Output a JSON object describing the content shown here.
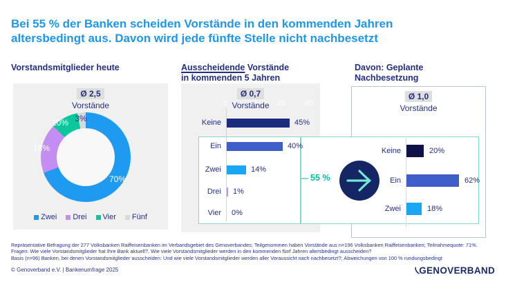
{
  "title": {
    "line1": "Bei 55 % der Banken scheiden Vorstände in den kommenden Jahren",
    "line2": "altersbedingt aus. Davon wird jede fünfte Stelle nicht nachbesetzt"
  },
  "sections": {
    "left": {
      "heading": "Vorstandsmitglieder heute",
      "avg_label": "Ø 2,5",
      "avg_sub": "Vorstände"
    },
    "middle": {
      "heading_underlined": "Ausscheidende",
      "heading_rest": " Vorstände",
      "heading_line2": "in kommenden 5 Jahren",
      "avg_label": "Ø 0,7",
      "avg_sub": "Vorstände"
    },
    "right": {
      "heading_line1": "Davon: Geplante",
      "heading_line2": "Nachbesetzung",
      "avg_label": "Ø 1,0",
      "avg_sub": "Vorstände"
    }
  },
  "chart_data": [
    {
      "type": "pie",
      "donut": true,
      "title": "Ø 2,5 Vorstände",
      "categories": [
        "Zwei",
        "Drei",
        "Vier",
        "Fünf"
      ],
      "values": [
        70,
        18,
        10,
        3
      ],
      "value_labels": [
        "70%",
        "18%",
        "10%",
        "3%"
      ],
      "colors": [
        "#1e9bf0",
        "#c48df2",
        "#0bc89c",
        "#d9d9d9"
      ],
      "legend_position": "bottom",
      "start_angle_deg": 0,
      "direction": "clockwise"
    },
    {
      "type": "bar",
      "orientation": "horizontal",
      "title": "Ø 0,7 Vorstände",
      "categories": [
        "Keine",
        "Ein",
        "Zwei",
        "Drei",
        "Vier"
      ],
      "values": [
        45,
        40,
        14,
        1,
        0
      ],
      "value_labels": [
        "45%",
        "40%",
        "14%",
        "1%",
        "0%"
      ],
      "colors": [
        "#1b2b7d",
        "#3f5ec7",
        "#16a6f2",
        "#c48df2",
        "#d9d9d9"
      ],
      "x_ticks": [
        "0",
        "20",
        "40",
        "60"
      ],
      "xlim": [
        0,
        60
      ],
      "annotation": "55 %",
      "annotation_note": "bracket around Ein+Zwei+Drei+Vier rows"
    },
    {
      "type": "bar",
      "orientation": "horizontal",
      "title": "Ø 1,0 Vorstände",
      "categories": [
        "Keine",
        "Ein",
        "Zwei"
      ],
      "values": [
        20,
        62,
        18
      ],
      "value_labels": [
        "20%",
        "62%",
        "18%"
      ],
      "colors": [
        "#0f1248",
        "#3f5ec7",
        "#16a6f2"
      ],
      "xlim": [
        0,
        80
      ]
    }
  ],
  "annotation": {
    "share_label": "55 %"
  },
  "footnotes": [
    "Repräsentative Befragung der 277 Volksbanken Raiffeisenbanken im Verbandsgebiet des Genoverbandes; Teilgenommen haben Vorstände aus n=196 Volksbanken Raiffeisenbanken; Teilnahmequote: 71%.",
    "Fragen: Wie viele Vorstandsmitglieder hat Ihre Bank aktuell?, Wie viele Vorstandsmitglieder werden in den kommenden fünf Jahren altersbedingt ausscheiden?",
    "Basis (n=96) Banken, bei denen Vorstandsmitglieder ausscheiden: Und wie viele Vorstandsmitglieder werden aller Voraussicht nach nachbesetzt?; Abweichungen von 100 % rundungsbedingt"
  ],
  "footer": {
    "copyright": "© Genoverband e.V. | Bankenumfrage 2025",
    "logo_text": "GENOVERBAND"
  },
  "colors": {
    "title_blue": "#1f97e8",
    "navy_text": "#242e80",
    "teal_border": "#82d8cf",
    "teal_text": "#00c19e",
    "arrow_circle": "#142664",
    "arrow_glyph": "#70ead4",
    "panel_gray": "#f0f0f0",
    "highlight_gray": "#dedede"
  }
}
